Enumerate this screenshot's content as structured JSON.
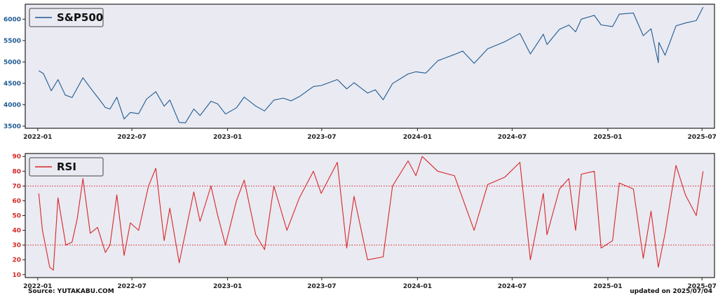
{
  "footer": {
    "source": "Source: YUTAKABU.COM",
    "updated": "updated on 2025/07/04"
  },
  "colors": {
    "panel_bg": "#eaeaf2",
    "sp500": "#1f5b92",
    "rsi": "#d62728",
    "sp500_ticks": "#1f5b92",
    "rsi_ticks": "#d62728"
  },
  "chart_data": [
    {
      "type": "line",
      "x_range": [
        "2021-12-08",
        "2025-07-25"
      ],
      "x_ticks": [
        "2022-01",
        "2022-07",
        "2023-01",
        "2023-07",
        "2024-01",
        "2024-07",
        "2025-01",
        "2025-07"
      ],
      "ylim": [
        3450,
        6350
      ],
      "y_ticks": [
        3500,
        4000,
        4500,
        5000,
        5500,
        6000
      ],
      "legend": "upper-left",
      "grid": false,
      "series": [
        {
          "name": "S&P500",
          "points": [
            [
              "2022-01-03",
              4797
            ],
            [
              "2022-01-12",
              4726
            ],
            [
              "2022-01-27",
              4326
            ],
            [
              "2022-02-09",
              4587
            ],
            [
              "2022-02-23",
              4225
            ],
            [
              "2022-03-08",
              4170
            ],
            [
              "2022-03-29",
              4631
            ],
            [
              "2022-04-12",
              4397
            ],
            [
              "2022-04-29",
              4132
            ],
            [
              "2022-05-11",
              3935
            ],
            [
              "2022-05-20",
              3901
            ],
            [
              "2022-06-02",
              4176
            ],
            [
              "2022-06-16",
              3666
            ],
            [
              "2022-06-28",
              3821
            ],
            [
              "2022-07-14",
              3790
            ],
            [
              "2022-07-29",
              4130
            ],
            [
              "2022-08-16",
              4305
            ],
            [
              "2022-09-01",
              3966
            ],
            [
              "2022-09-12",
              4110
            ],
            [
              "2022-09-30",
              3586
            ],
            [
              "2022-10-12",
              3577
            ],
            [
              "2022-10-28",
              3901
            ],
            [
              "2022-11-09",
              3748
            ],
            [
              "2022-11-30",
              4080
            ],
            [
              "2022-12-13",
              4019
            ],
            [
              "2022-12-28",
              3783
            ],
            [
              "2023-01-18",
              3928
            ],
            [
              "2023-02-02",
              4179
            ],
            [
              "2023-02-24",
              3970
            ],
            [
              "2023-03-13",
              3855
            ],
            [
              "2023-03-31",
              4109
            ],
            [
              "2023-04-18",
              4154
            ],
            [
              "2023-05-03",
              4090
            ],
            [
              "2023-05-19",
              4191
            ],
            [
              "2023-06-15",
              4426
            ],
            [
              "2023-06-30",
              4450
            ],
            [
              "2023-07-31",
              4589
            ],
            [
              "2023-08-18",
              4370
            ],
            [
              "2023-09-01",
              4515
            ],
            [
              "2023-09-27",
              4274
            ],
            [
              "2023-10-12",
              4349
            ],
            [
              "2023-10-27",
              4117
            ],
            [
              "2023-11-14",
              4495
            ],
            [
              "2023-12-14",
              4719
            ],
            [
              "2023-12-29",
              4770
            ],
            [
              "2024-01-17",
              4739
            ],
            [
              "2024-02-09",
              5027
            ],
            [
              "2024-03-12",
              5175
            ],
            [
              "2024-03-28",
              5254
            ],
            [
              "2024-04-19",
              4967
            ],
            [
              "2024-05-15",
              5308
            ],
            [
              "2024-06-17",
              5473
            ],
            [
              "2024-07-16",
              5667
            ],
            [
              "2024-08-05",
              5186
            ],
            [
              "2024-08-30",
              5648
            ],
            [
              "2024-09-06",
              5408
            ],
            [
              "2024-09-30",
              5762
            ],
            [
              "2024-10-18",
              5864
            ],
            [
              "2024-10-31",
              5705
            ],
            [
              "2024-11-11",
              6001
            ],
            [
              "2024-12-06",
              6090
            ],
            [
              "2024-12-19",
              5867
            ],
            [
              "2025-01-10",
              5827
            ],
            [
              "2025-01-23",
              6118
            ],
            [
              "2025-02-19",
              6144
            ],
            [
              "2025-03-10",
              5614
            ],
            [
              "2025-03-25",
              5776
            ],
            [
              "2025-04-08",
              4983
            ],
            [
              "2025-04-09",
              5457
            ],
            [
              "2025-04-21",
              5158
            ],
            [
              "2025-05-12",
              5844
            ],
            [
              "2025-05-30",
              5911
            ],
            [
              "2025-06-20",
              5967
            ],
            [
              "2025-07-03",
              6279
            ]
          ]
        }
      ]
    },
    {
      "type": "line",
      "x_range": [
        "2021-12-08",
        "2025-07-25"
      ],
      "x_ticks": [
        "2022-01",
        "2022-07",
        "2023-01",
        "2023-07",
        "2024-01",
        "2024-07",
        "2025-01",
        "2025-07"
      ],
      "ylim": [
        8,
        92
      ],
      "y_ticks": [
        10,
        20,
        30,
        40,
        50,
        60,
        70,
        80,
        90
      ],
      "reference_lines": [
        70,
        30
      ],
      "legend": "upper-left",
      "grid": false,
      "series": [
        {
          "name": "RSI",
          "points": [
            [
              "2022-01-03",
              65
            ],
            [
              "2022-01-10",
              40
            ],
            [
              "2022-01-24",
              15
            ],
            [
              "2022-01-31",
              13
            ],
            [
              "2022-02-09",
              62
            ],
            [
              "2022-02-24",
              30
            ],
            [
              "2022-03-08",
              32
            ],
            [
              "2022-03-18",
              48
            ],
            [
              "2022-03-29",
              75
            ],
            [
              "2022-04-12",
              38
            ],
            [
              "2022-04-26",
              42
            ],
            [
              "2022-05-11",
              25
            ],
            [
              "2022-05-20",
              30
            ],
            [
              "2022-06-02",
              64
            ],
            [
              "2022-06-16",
              23
            ],
            [
              "2022-06-28",
              45
            ],
            [
              "2022-07-14",
              40
            ],
            [
              "2022-08-02",
              70
            ],
            [
              "2022-08-16",
              82
            ],
            [
              "2022-09-01",
              33
            ],
            [
              "2022-09-12",
              55
            ],
            [
              "2022-09-30",
              18
            ],
            [
              "2022-10-28",
              66
            ],
            [
              "2022-11-09",
              46
            ],
            [
              "2022-11-30",
              70
            ],
            [
              "2022-12-13",
              50
            ],
            [
              "2022-12-28",
              30
            ],
            [
              "2023-01-18",
              60
            ],
            [
              "2023-02-02",
              74
            ],
            [
              "2023-02-24",
              37
            ],
            [
              "2023-03-13",
              27
            ],
            [
              "2023-03-31",
              70
            ],
            [
              "2023-04-25",
              40
            ],
            [
              "2023-05-19",
              62
            ],
            [
              "2023-06-15",
              80
            ],
            [
              "2023-06-30",
              65
            ],
            [
              "2023-07-31",
              86
            ],
            [
              "2023-08-18",
              28
            ],
            [
              "2023-09-01",
              63
            ],
            [
              "2023-09-27",
              20
            ],
            [
              "2023-10-27",
              22
            ],
            [
              "2023-11-14",
              70
            ],
            [
              "2023-12-14",
              87
            ],
            [
              "2023-12-29",
              77
            ],
            [
              "2024-01-10",
              90
            ],
            [
              "2024-02-09",
              80
            ],
            [
              "2024-03-12",
              77
            ],
            [
              "2024-04-19",
              40
            ],
            [
              "2024-05-15",
              71
            ],
            [
              "2024-06-17",
              76
            ],
            [
              "2024-07-16",
              86
            ],
            [
              "2024-08-05",
              20
            ],
            [
              "2024-08-30",
              65
            ],
            [
              "2024-09-06",
              37
            ],
            [
              "2024-09-30",
              68
            ],
            [
              "2024-10-18",
              75
            ],
            [
              "2024-10-31",
              40
            ],
            [
              "2024-11-11",
              78
            ],
            [
              "2024-12-06",
              80
            ],
            [
              "2024-12-19",
              28
            ],
            [
              "2025-01-10",
              33
            ],
            [
              "2025-01-23",
              72
            ],
            [
              "2025-02-19",
              68
            ],
            [
              "2025-03-10",
              21
            ],
            [
              "2025-03-25",
              53
            ],
            [
              "2025-04-08",
              15
            ],
            [
              "2025-04-21",
              38
            ],
            [
              "2025-05-12",
              84
            ],
            [
              "2025-05-30",
              64
            ],
            [
              "2025-06-20",
              50
            ],
            [
              "2025-07-03",
              80
            ]
          ]
        }
      ]
    }
  ]
}
